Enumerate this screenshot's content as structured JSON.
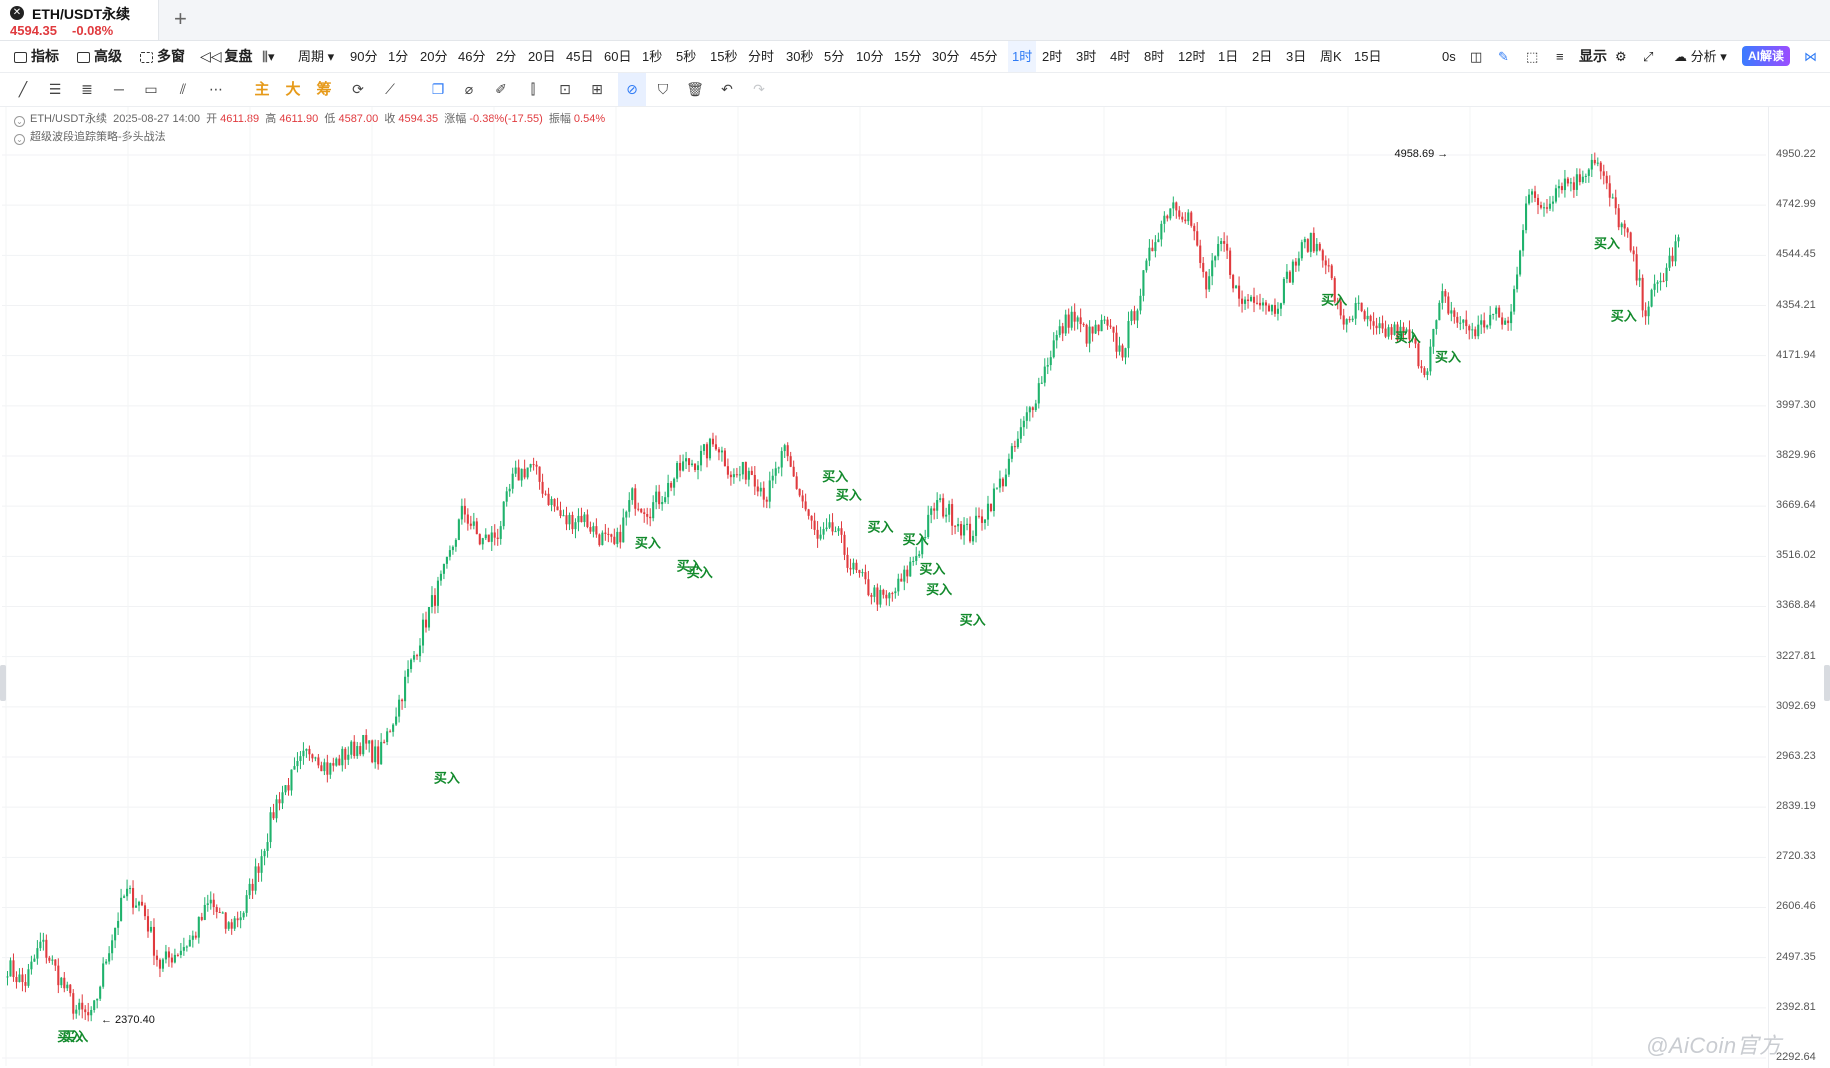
{
  "tab": {
    "close_icon": "close-circle-icon",
    "symbol": "ETH/USDT永续",
    "price": "4594.35",
    "change": "-0.08%",
    "add_icon": "+"
  },
  "toolbar": {
    "left": [
      {
        "label": "指标",
        "icon": "indicator-icon"
      },
      {
        "label": "高级",
        "icon": "advanced-icon"
      },
      {
        "label": "多窗",
        "icon": "multi-window-icon"
      },
      {
        "label": "复盘",
        "icon": "replay-icon"
      }
    ],
    "period_label": "周期",
    "periods": [
      "90分",
      "1分",
      "20分",
      "46分",
      "2分",
      "20日",
      "45日",
      "60日",
      "1秒",
      "5秒",
      "15秒",
      "分时",
      "30秒",
      "5分",
      "10分",
      "15分",
      "30分",
      "45分",
      "1时",
      "2时",
      "3时",
      "4时",
      "8时",
      "12时",
      "1日",
      "2日",
      "3日",
      "周K",
      "15日"
    ],
    "active_period": "1时",
    "countdown": "0s",
    "display_label": "显示",
    "analysis_label": "分析",
    "ai_label": "AI解读"
  },
  "draw_tools": {
    "text_tools": [
      "主",
      "大",
      "筹"
    ]
  },
  "info": {
    "symbol": "ETH/USDT永续",
    "datetime": "2025-08-27 14:00",
    "open_label": "开",
    "open": "4611.89",
    "high_label": "高",
    "high": "4611.90",
    "low_label": "低",
    "low": "4587.00",
    "close_label": "收",
    "close": "4594.35",
    "change_label": "涨幅",
    "change": "-0.38%(-17.55)",
    "amp_label": "振幅",
    "amp": "0.54%",
    "strategy": "超级波段追踪策略-多头战法"
  },
  "chart_data": {
    "type": "candlestick",
    "interval": "1时",
    "y_ticks": [
      "4950.22",
      "4742.99",
      "4544.45",
      "4354.21",
      "4171.94",
      "3997.30",
      "3829.96",
      "3669.64",
      "3516.02",
      "3368.84",
      "3227.81",
      "3092.69",
      "2963.23",
      "2839.19",
      "2720.33",
      "2606.46",
      "2497.35",
      "2392.81",
      "2292.64"
    ],
    "ylim": [
      2292.64,
      4990
    ],
    "scale": "log",
    "close_path": [
      2480,
      2440,
      2530,
      2460,
      2390,
      2370,
      2520,
      2640,
      2610,
      2480,
      2510,
      2540,
      2620,
      2560,
      2600,
      2720,
      2860,
      2920,
      2990,
      2930,
      2970,
      3000,
      2960,
      3080,
      3220,
      3360,
      3480,
      3660,
      3560,
      3580,
      3760,
      3800,
      3700,
      3620,
      3640,
      3580,
      3540,
      3700,
      3660,
      3720,
      3800,
      3820,
      3880,
      3760,
      3790,
      3700,
      3840,
      3700,
      3560,
      3600,
      3480,
      3420,
      3380,
      3440,
      3540,
      3680,
      3640,
      3580,
      3660,
      3760,
      3900,
      4050,
      4220,
      4320,
      4240,
      4280,
      4180,
      4380,
      4620,
      4760,
      4700,
      4420,
      4600,
      4360,
      4400,
      4340,
      4480,
      4600,
      4560,
      4290,
      4340,
      4250,
      4260,
      4240,
      4120,
      4380,
      4290,
      4260,
      4320,
      4280,
      4780,
      4740,
      4840,
      4840,
      4950,
      4760,
      4600,
      4340,
      4450,
      4600
    ],
    "high_marker": {
      "value": "4958.69",
      "position": "1.0"
    },
    "low_marker": {
      "value": "2370.40"
    },
    "signal_label": "买入",
    "buy_signals": [
      {
        "price": 2370,
        "t": 0.039
      },
      {
        "price": 2370,
        "t": 0.042
      },
      {
        "price": 2955,
        "t": 0.264
      },
      {
        "price": 3610,
        "t": 0.384
      },
      {
        "price": 3540,
        "t": 0.409
      },
      {
        "price": 3520,
        "t": 0.415
      },
      {
        "price": 3820,
        "t": 0.496
      },
      {
        "price": 3760,
        "t": 0.504
      },
      {
        "price": 3660,
        "t": 0.523
      },
      {
        "price": 3620,
        "t": 0.544
      },
      {
        "price": 3530,
        "t": 0.554
      },
      {
        "price": 3470,
        "t": 0.558
      },
      {
        "price": 3380,
        "t": 0.578
      },
      {
        "price": 4440,
        "t": 0.794
      },
      {
        "price": 4300,
        "t": 0.838
      },
      {
        "price": 4230,
        "t": 0.862
      },
      {
        "price": 4660,
        "t": 0.957
      },
      {
        "price": 4380,
        "t": 0.967
      }
    ]
  },
  "watermark": "@AiCoin官方"
}
